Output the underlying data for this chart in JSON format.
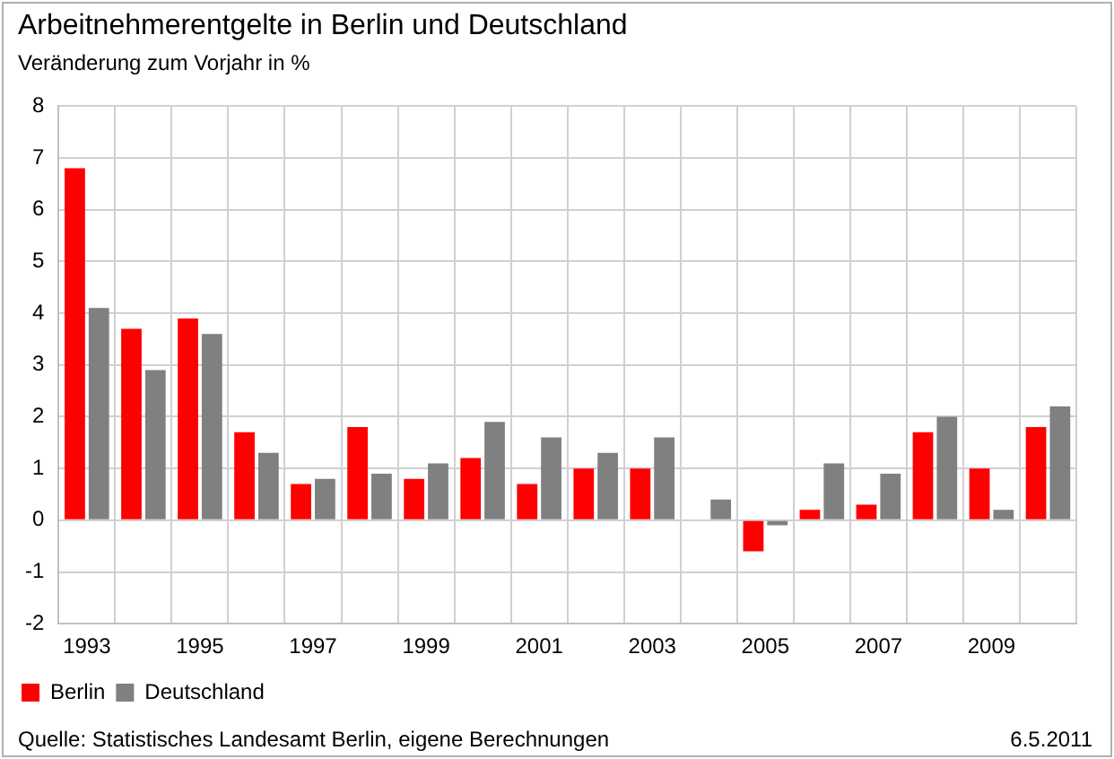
{
  "chart_data": {
    "type": "bar",
    "title": "Arbeitnehmerentgelte in Berlin und Deutschland",
    "subtitle": "Veränderung zum Vorjahr in %",
    "categories": [
      "1993",
      null,
      "1995",
      null,
      "1997",
      null,
      "1999",
      null,
      "2001",
      null,
      "2003",
      null,
      "2005",
      null,
      "2007",
      null,
      "2009",
      null
    ],
    "series": [
      {
        "name": "Berlin",
        "color": "#ff0000",
        "values": [
          6.8,
          3.7,
          3.9,
          1.7,
          0.7,
          1.8,
          0.8,
          1.2,
          0.7,
          1.0,
          1.0,
          null,
          -0.6,
          0.2,
          0.3,
          1.7,
          1.0,
          1.8
        ]
      },
      {
        "name": "Deutschland",
        "color": "#808080",
        "values": [
          4.1,
          2.9,
          3.6,
          1.3,
          0.8,
          0.9,
          1.1,
          1.9,
          1.6,
          1.3,
          1.6,
          0.4,
          -0.1,
          1.1,
          0.9,
          2.0,
          0.2,
          2.2
        ]
      }
    ],
    "ylim": [
      -2,
      8
    ],
    "yticks": [
      -2,
      -1,
      0,
      1,
      2,
      3,
      4,
      5,
      6,
      7,
      8
    ],
    "grid": true,
    "legend": "bottom left",
    "annotations": [
      "Quelle: Statistisches Landesamt Berlin, eigene Berechnungen",
      "6.5.2011"
    ]
  }
}
